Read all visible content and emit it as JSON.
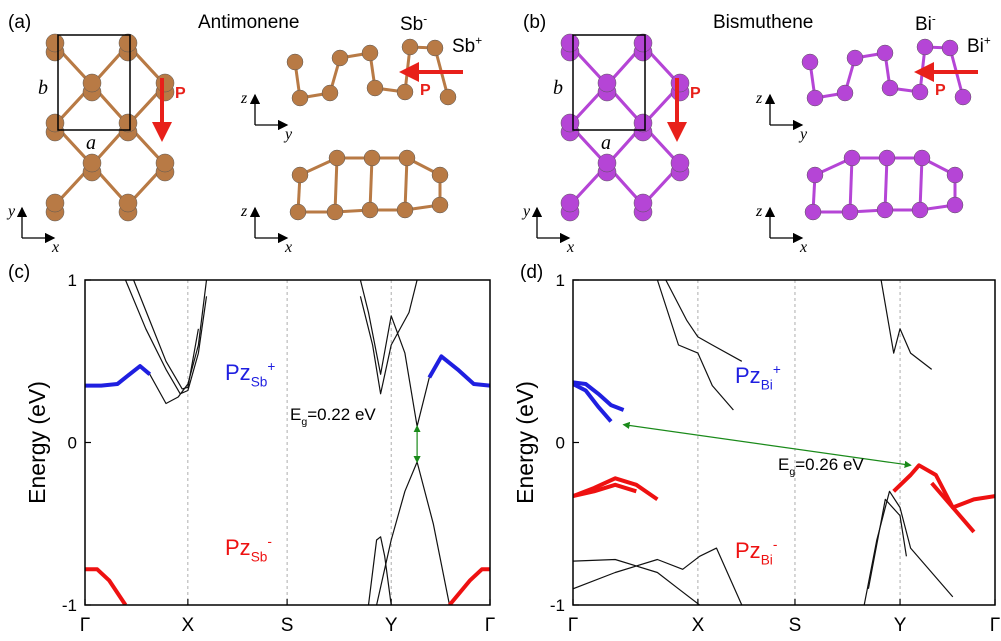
{
  "structures": [
    {
      "panel": "(a)",
      "title": "Antimonene",
      "color": "#b87a45",
      "ions": [
        {
          "text": "Sb",
          "sup": "-"
        },
        {
          "text": "Sb",
          "sup": "+"
        }
      ],
      "polarization": [
        "P",
        "P"
      ],
      "lattice": [
        "a",
        "b"
      ],
      "axes": [
        [
          "y",
          "x"
        ],
        [
          "z",
          "y"
        ],
        [
          "z",
          "x"
        ]
      ]
    },
    {
      "panel": "(b)",
      "title": "Bismuthene",
      "color": "#b545d6",
      "ions": [
        {
          "text": "Bi",
          "sup": "-"
        },
        {
          "text": "Bi",
          "sup": "+"
        }
      ],
      "polarization": [
        "P",
        "P"
      ],
      "lattice": [
        "a",
        "b"
      ],
      "axes": [
        [
          "y",
          "x"
        ],
        [
          "z",
          "y"
        ],
        [
          "z",
          "x"
        ]
      ]
    }
  ],
  "chart_data": [
    {
      "type": "line",
      "panel": "(c)",
      "ylabel": "Energy (eV)",
      "xlim": [
        0,
        1
      ],
      "ylim": [
        -1,
        1
      ],
      "xticks": [
        {
          "value": 0,
          "label": "Γ"
        },
        {
          "value": 0.254,
          "label": "X"
        },
        {
          "value": 0.499,
          "label": "S"
        },
        {
          "value": 0.756,
          "label": "Y"
        },
        {
          "value": 1,
          "label": "Γ"
        }
      ],
      "yticks": [
        -1,
        0,
        1
      ],
      "xgrid": true,
      "series": [
        {
          "color": "#1f1fe0",
          "x": [
            0,
            0.04,
            0.08,
            0.11,
            0.136,
            0.16
          ],
          "values": [
            0.35,
            0.35,
            0.36,
            0.42,
            0.47,
            0.42
          ]
        },
        {
          "color": "#111111",
          "x": [
            0.16,
            0.2,
            0.23,
            0.254,
            0.28,
            0.3
          ],
          "values": [
            0.42,
            0.24,
            0.28,
            0.36,
            0.6,
            1.0
          ]
        },
        {
          "color": "#111111",
          "x": [
            0.1,
            0.15,
            0.2,
            0.235,
            0.254,
            0.28,
            0.3
          ],
          "values": [
            1.0,
            0.7,
            0.45,
            0.3,
            0.32,
            0.55,
            0.9
          ]
        },
        {
          "color": "#111111",
          "x": [
            0.12,
            0.16,
            0.2,
            0.24,
            0.254,
            0.28
          ],
          "values": [
            1.0,
            0.75,
            0.5,
            0.33,
            0.34,
            0.7
          ]
        },
        {
          "color": "#111111",
          "x": [
            0.68,
            0.7,
            0.73,
            0.756,
            0.79,
            0.82,
            0.85
          ],
          "values": [
            1.0,
            0.8,
            0.42,
            0.78,
            0.55,
            0.1,
            0.4
          ]
        },
        {
          "color": "#111111",
          "x": [
            0.68,
            0.71,
            0.73,
            0.756,
            0.8,
            0.82
          ],
          "values": [
            0.9,
            0.6,
            0.3,
            0.6,
            0.8,
            1.0
          ]
        },
        {
          "color": "#1f1fe0",
          "x": [
            0.85,
            0.88,
            0.92,
            0.96,
            1.0
          ],
          "values": [
            0.4,
            0.53,
            0.45,
            0.36,
            0.35
          ]
        },
        {
          "color": "#111111",
          "x": [
            0.72,
            0.756,
            0.79,
            0.82,
            0.86,
            0.9
          ],
          "values": [
            -1,
            -0.6,
            -0.3,
            -0.12,
            -0.5,
            -1
          ]
        },
        {
          "color": "#111111",
          "x": [
            0.7,
            0.72,
            0.73,
            0.74,
            0.756
          ],
          "values": [
            -1,
            -0.6,
            -0.58,
            -0.7,
            -1
          ]
        },
        {
          "color": "#ee1111",
          "x": [
            0,
            0.03,
            0.06,
            0.1
          ],
          "values": [
            -0.78,
            -0.78,
            -0.85,
            -1
          ]
        },
        {
          "color": "#ee1111",
          "x": [
            0.9,
            0.95,
            0.98,
            1
          ],
          "values": [
            -1,
            -0.85,
            -0.78,
            -0.78
          ]
        }
      ],
      "annotations": [
        {
          "text": "Pz",
          "sub": "Sb",
          "sup": "+",
          "color": "#1f1fe0"
        },
        {
          "text": "Pz",
          "sub": "Sb",
          "sup": "-",
          "color": "#ee1111"
        }
      ],
      "gap": {
        "text": "E",
        "sub": "g",
        "rest": "=0.22 eV",
        "color": "#1a8a1a",
        "x": [
          0.82,
          0.82
        ],
        "y": [
          0.1,
          -0.12
        ]
      }
    },
    {
      "type": "line",
      "panel": "(d)",
      "ylabel": "Energy (eV)",
      "xlim": [
        0,
        1
      ],
      "ylim": [
        -1,
        1
      ],
      "xticks": [
        {
          "value": 0,
          "label": "Γ"
        },
        {
          "value": 0.296,
          "label": "X"
        },
        {
          "value": 0.526,
          "label": "S"
        },
        {
          "value": 0.775,
          "label": "Y"
        },
        {
          "value": 1,
          "label": "Γ"
        }
      ],
      "yticks": [
        -1,
        0,
        1
      ],
      "xgrid": true,
      "series": [
        {
          "color": "#1f1fe0",
          "x": [
            0,
            0.03,
            0.06,
            0.09,
            0.12
          ],
          "values": [
            0.37,
            0.36,
            0.3,
            0.23,
            0.2
          ]
        },
        {
          "color": "#1f1fe0",
          "x": [
            0,
            0.03,
            0.06,
            0.09
          ],
          "values": [
            0.36,
            0.32,
            0.22,
            0.13
          ]
        },
        {
          "color": "#ee1111",
          "x": [
            0,
            0.05,
            0.1,
            0.15,
            0.2
          ],
          "values": [
            -0.33,
            -0.28,
            -0.22,
            -0.26,
            -0.35
          ]
        },
        {
          "color": "#ee1111",
          "x": [
            0,
            0.05,
            0.1,
            0.15
          ],
          "values": [
            -0.33,
            -0.3,
            -0.26,
            -0.3
          ]
        },
        {
          "color": "#ee1111",
          "x": [
            0.76,
            0.8,
            0.82,
            0.86,
            0.9,
            0.95
          ],
          "values": [
            -0.3,
            -0.2,
            -0.14,
            -0.2,
            -0.4,
            -0.55
          ]
        },
        {
          "color": "#ee1111",
          "x": [
            0.85,
            0.9,
            0.95,
            1
          ],
          "values": [
            -0.25,
            -0.4,
            -0.35,
            -0.33
          ]
        },
        {
          "color": "#111111",
          "x": [
            0.69,
            0.72,
            0.75,
            0.775,
            0.8,
            0.85,
            0.9
          ],
          "values": [
            -1,
            -0.6,
            -0.3,
            -0.4,
            -0.65,
            -0.8,
            -0.95
          ]
        },
        {
          "color": "#111111",
          "x": [
            0.7,
            0.74,
            0.775,
            0.79
          ],
          "values": [
            -0.9,
            -0.35,
            -0.45,
            -0.7
          ]
        },
        {
          "color": "#111111",
          "x": [
            0.2,
            0.25,
            0.296,
            0.33,
            0.38
          ],
          "values": [
            1,
            0.6,
            0.55,
            0.35,
            0.2
          ]
        },
        {
          "color": "#111111",
          "x": [
            0.22,
            0.27,
            0.296,
            0.33,
            0.4
          ],
          "values": [
            1,
            0.75,
            0.65,
            0.6,
            0.5
          ]
        },
        {
          "color": "#111111",
          "x": [
            0.73,
            0.76,
            0.775,
            0.8,
            0.85
          ],
          "values": [
            1,
            0.55,
            0.7,
            0.55,
            0.45
          ]
        },
        {
          "color": "#111111",
          "x": [
            0,
            0.1,
            0.2,
            0.25,
            0.3
          ],
          "values": [
            -0.73,
            -0.72,
            -0.8,
            -0.9,
            -1
          ]
        },
        {
          "color": "#111111",
          "x": [
            0,
            0.1,
            0.2,
            0.26,
            0.3,
            0.34,
            0.4
          ],
          "values": [
            -0.9,
            -0.8,
            -0.72,
            -0.78,
            -0.7,
            -0.65,
            -1
          ]
        }
      ],
      "annotations": [
        {
          "text": "Pz",
          "sub": "Bi",
          "sup": "+",
          "color": "#1f1fe0"
        },
        {
          "text": "Pz",
          "sub": "Bi",
          "sup": "-",
          "color": "#ee1111"
        }
      ],
      "gap": {
        "text": "E",
        "sub": "g",
        "rest": "=0.26 eV",
        "color": "#1a8a1a",
        "x": [
          0.12,
          0.8
        ],
        "y": [
          0.11,
          -0.14
        ]
      }
    }
  ]
}
